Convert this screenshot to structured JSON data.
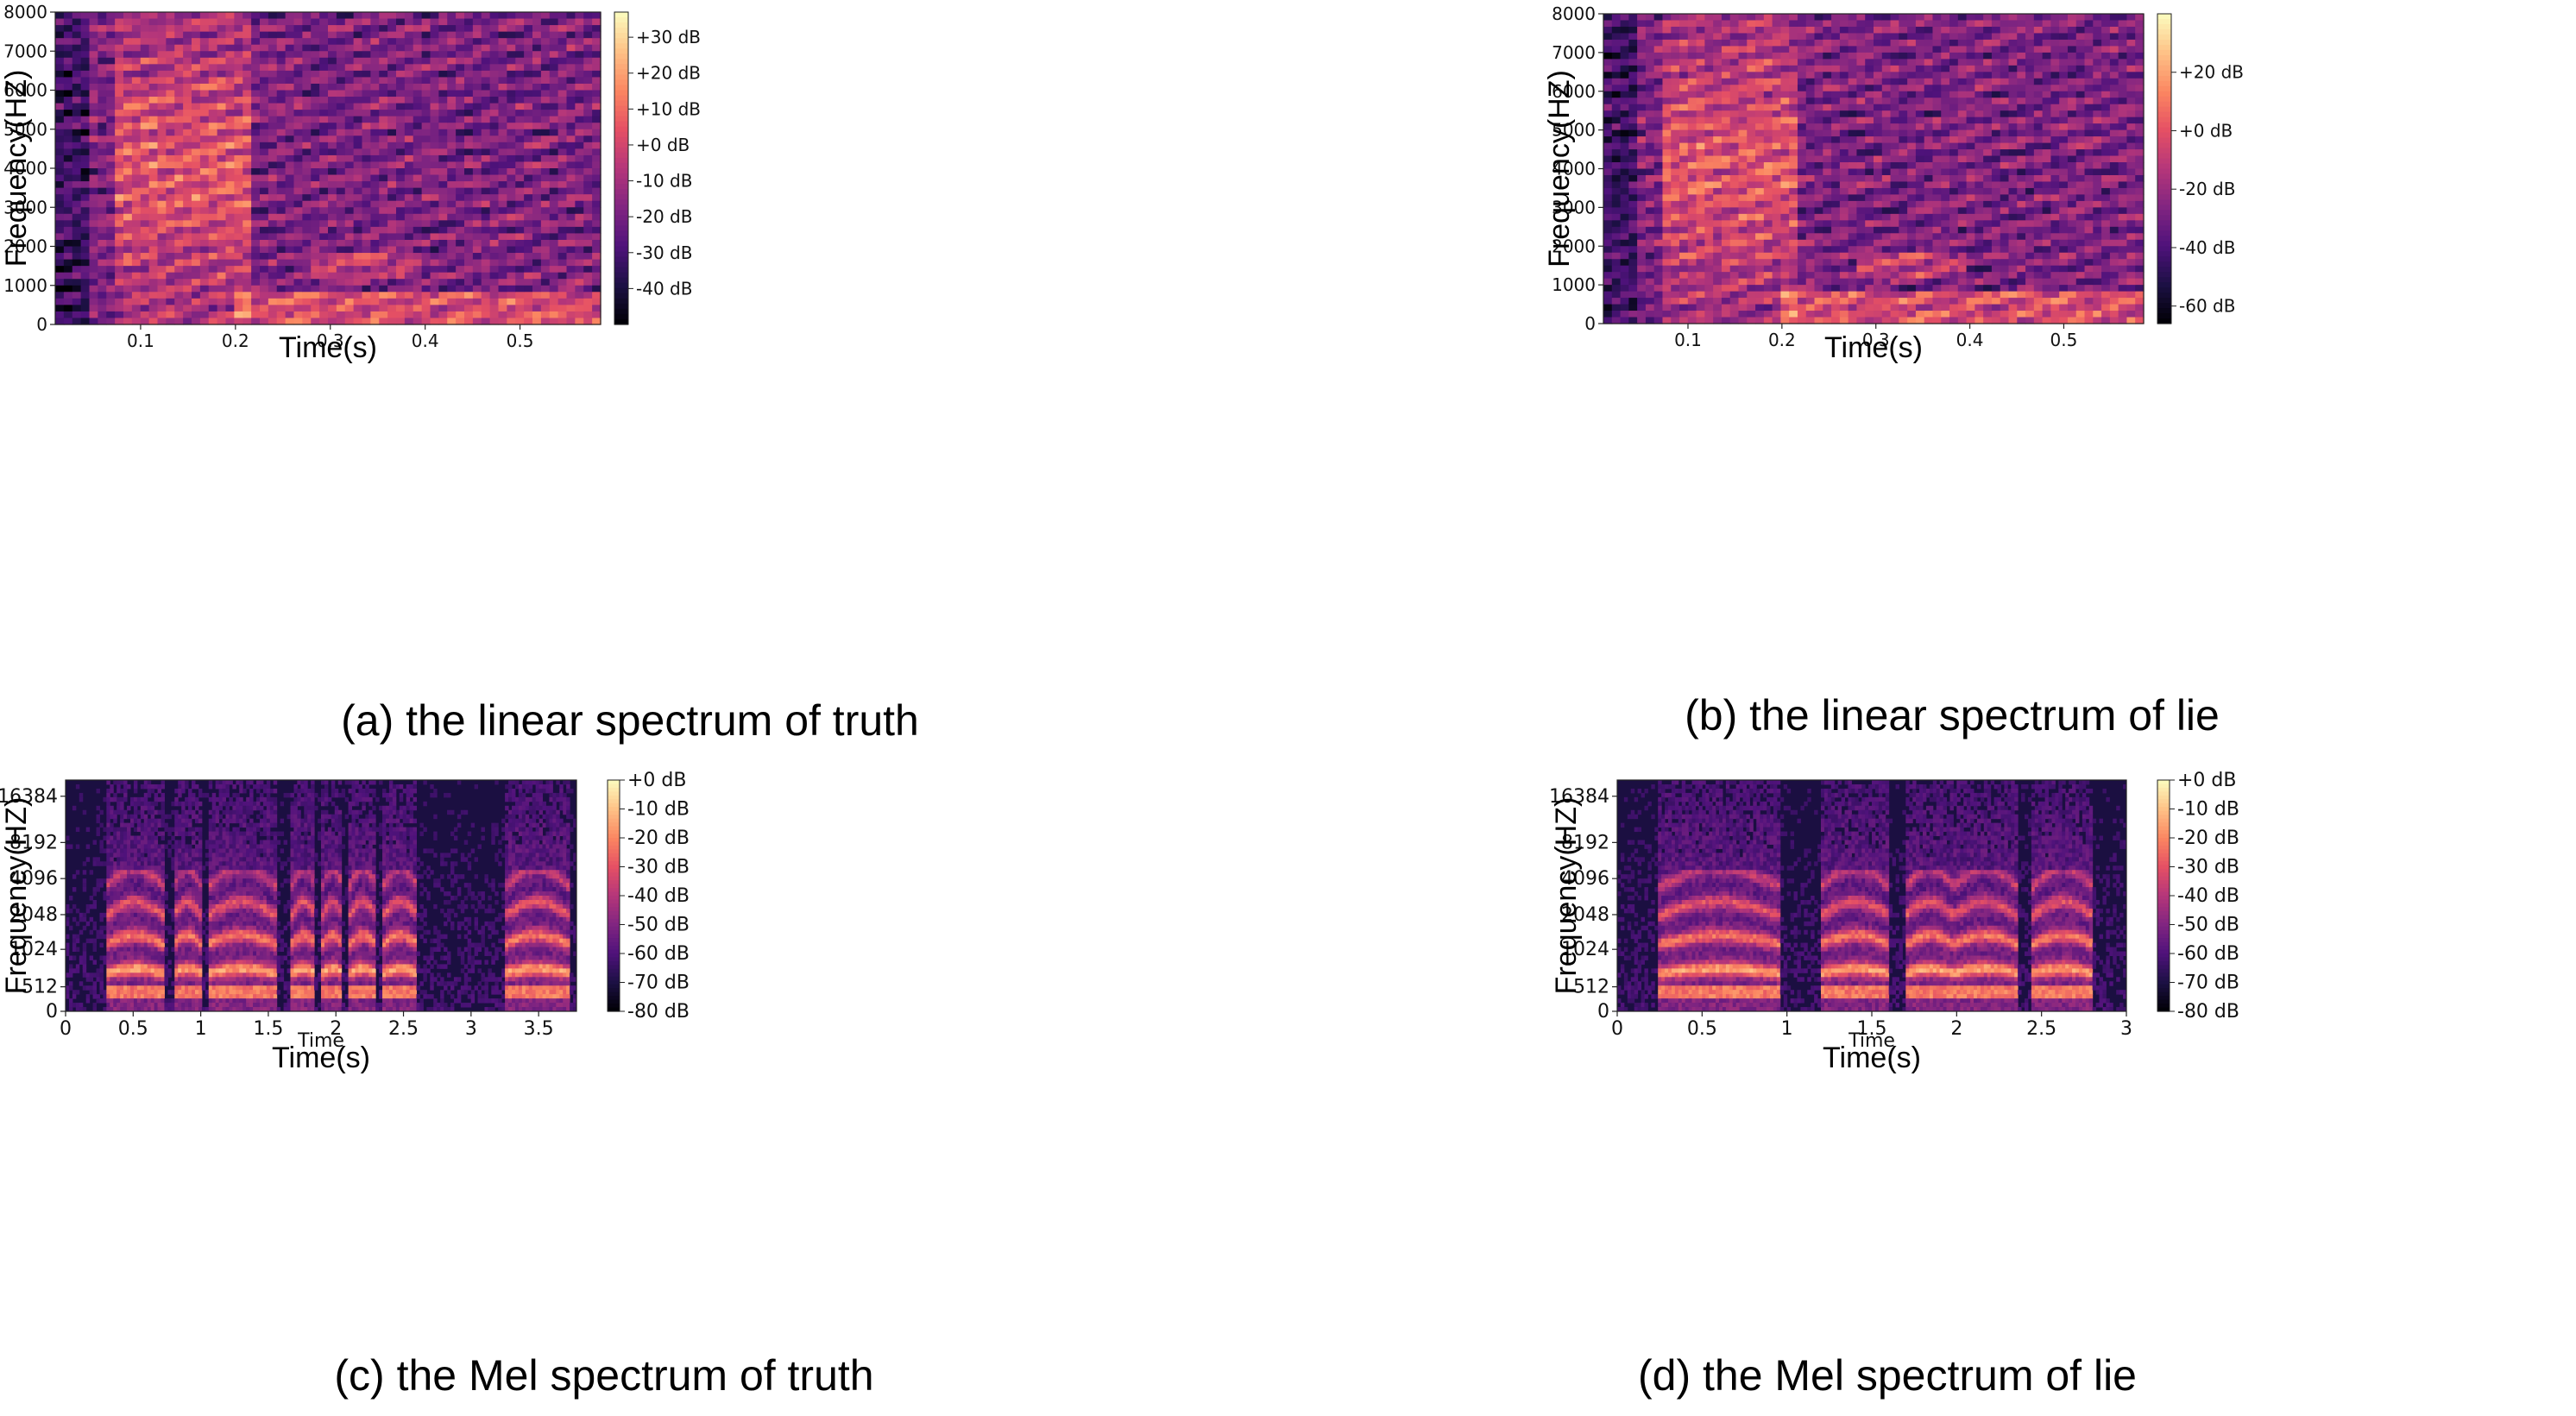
{
  "panels": [
    {
      "id": "a",
      "caption": "(a) the linear spectrum of truth",
      "chart_data": {
        "type": "heatmap",
        "variant": "linear",
        "title": "",
        "xlabel": "Time(s)",
        "inner_xlabel": "",
        "ylabel": "Frequency(HZ)",
        "xlim": [
          0.01,
          0.585
        ],
        "ylim": [
          0,
          8000
        ],
        "x_ticks": [
          0.1,
          0.2,
          0.3,
          0.4,
          0.5
        ],
        "x_tick_labels": [
          "0.1",
          "0.2",
          "0.3",
          "0.4",
          "0.5"
        ],
        "y_ticks": [
          0,
          1000,
          2000,
          3000,
          4000,
          5000,
          6000,
          7000,
          8000
        ],
        "y_tick_labels": [
          "0",
          "1000",
          "2000",
          "3000",
          "4000",
          "5000",
          "6000",
          "7000",
          "8000"
        ],
        "colormap": "magma",
        "colorbar": {
          "range_db": [
            -50,
            37
          ],
          "ticks_db": [
            30,
            20,
            10,
            0,
            -10,
            -20,
            -30,
            -40
          ],
          "tick_labels": [
            "+30 dB",
            "+20 dB",
            "+10 dB",
            "+0 dB",
            "-10 dB",
            "-20 dB",
            "-30 dB",
            "-40 dB"
          ]
        }
      }
    },
    {
      "id": "b",
      "caption": "(b) the linear spectrum of lie",
      "chart_data": {
        "type": "heatmap",
        "variant": "linear",
        "title": "",
        "xlabel": "Time(s)",
        "inner_xlabel": "",
        "ylabel": "Frequency(HZ)",
        "xlim": [
          0.01,
          0.585
        ],
        "ylim": [
          0,
          8000
        ],
        "x_ticks": [
          0.1,
          0.2,
          0.3,
          0.4,
          0.5
        ],
        "x_tick_labels": [
          "0.1",
          "0.2",
          "0.3",
          "0.4",
          "0.5"
        ],
        "y_ticks": [
          0,
          1000,
          2000,
          3000,
          4000,
          5000,
          6000,
          7000,
          8000
        ],
        "y_tick_labels": [
          "0",
          "1000",
          "2000",
          "3000",
          "4000",
          "5000",
          "6000",
          "7000",
          "8000"
        ],
        "colormap": "magma",
        "colorbar": {
          "range_db": [
            -66,
            40
          ],
          "ticks_db": [
            20,
            0,
            -20,
            -40,
            -60
          ],
          "tick_labels": [
            "+20 dB",
            "+0 dB",
            "-20 dB",
            "-40 dB",
            "-60 dB"
          ]
        }
      }
    },
    {
      "id": "c",
      "caption": "(c) the Mel spectrum of truth",
      "chart_data": {
        "type": "heatmap",
        "variant": "mel",
        "title": "",
        "xlabel": "Time(s)",
        "inner_xlabel": "Time",
        "ylabel": "Frequency(HZ)",
        "xlim": [
          0,
          3.78
        ],
        "y_tick_labels": [
          "0",
          "512",
          "1024",
          "2048",
          "4096",
          "8192",
          "16384"
        ],
        "x_ticks": [
          0,
          0.5,
          1,
          1.5,
          2,
          2.5,
          3,
          3.5
        ],
        "x_tick_labels": [
          "0",
          "0.5",
          "1",
          "1.5",
          "2",
          "2.5",
          "3",
          "3.5"
        ],
        "voiced_segments": [
          [
            0.3,
            0.72
          ],
          [
            0.8,
            1.0
          ],
          [
            1.05,
            1.55
          ],
          [
            1.67,
            1.85
          ],
          [
            1.9,
            2.05
          ],
          [
            2.1,
            2.3
          ],
          [
            2.35,
            2.6
          ],
          [
            3.25,
            3.72
          ]
        ],
        "colormap": "magma",
        "colorbar": {
          "range_db": [
            -80,
            0
          ],
          "ticks_db": [
            0,
            -10,
            -20,
            -30,
            -40,
            -50,
            -60,
            -70,
            -80
          ],
          "tick_labels": [
            "+0 dB",
            "-10 dB",
            "-20 dB",
            "-30 dB",
            "-40 dB",
            "-50 dB",
            "-60 dB",
            "-70 dB",
            "-80 dB"
          ]
        }
      }
    },
    {
      "id": "d",
      "caption": "(d) the Mel spectrum of lie",
      "chart_data": {
        "type": "heatmap",
        "variant": "mel",
        "title": "",
        "xlabel": "Time(s)",
        "inner_xlabel": "Time",
        "ylabel": "Frequency(HZ)",
        "xlim": [
          0,
          3.0
        ],
        "y_tick_labels": [
          "0",
          "512",
          "1024",
          "2048",
          "4096",
          "8192",
          "16384"
        ],
        "x_ticks": [
          0,
          0.5,
          1,
          1.5,
          2,
          2.5,
          3
        ],
        "x_tick_labels": [
          "0",
          "0.5",
          "1",
          "1.5",
          "2",
          "2.5",
          "3"
        ],
        "voiced_segments": [
          [
            0.25,
            0.95
          ],
          [
            1.2,
            1.6
          ],
          [
            1.7,
            1.98
          ],
          [
            1.98,
            2.35
          ],
          [
            2.45,
            2.8
          ]
        ],
        "colormap": "magma",
        "colorbar": {
          "range_db": [
            -80,
            0
          ],
          "ticks_db": [
            0,
            -10,
            -20,
            -30,
            -40,
            -50,
            -60,
            -70,
            -80
          ],
          "tick_labels": [
            "+0 dB",
            "-10 dB",
            "-20 dB",
            "-30 dB",
            "-40 dB",
            "-50 dB",
            "-60 dB",
            "-70 dB",
            "-80 dB"
          ]
        }
      }
    }
  ]
}
